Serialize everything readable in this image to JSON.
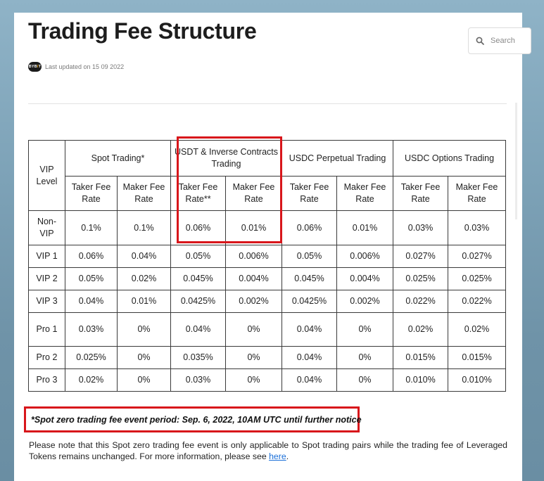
{
  "header": {
    "title": "Trading Fee Structure",
    "search_placeholder": "Search",
    "logo_text": "BYBIT",
    "last_updated": "Last updated on 15 09 2022"
  },
  "table": {
    "vip_header": "VIP Level",
    "groups": [
      "Spot Trading*",
      "USDT & Inverse Contracts Trading",
      "USDC Perpetual Trading",
      "USDC Options Trading"
    ],
    "subheaders": [
      "Taker Fee Rate",
      "Maker Fee Rate",
      "Taker Fee Rate**",
      "Maker Fee Rate",
      "Taker Fee Rate",
      "Maker Fee Rate",
      "Taker Fee Rate",
      "Maker Fee Rate"
    ],
    "rows": [
      {
        "level": "Non-VIP",
        "values": [
          "0.1%",
          "0.1%",
          "0.06%",
          "0.01%",
          "0.06%",
          "0.01%",
          "0.03%",
          "0.03%"
        ]
      },
      {
        "level": "VIP 1",
        "values": [
          "0.06%",
          "0.04%",
          "0.05%",
          "0.006%",
          "0.05%",
          "0.006%",
          "0.027%",
          "0.027%"
        ]
      },
      {
        "level": "VIP 2",
        "values": [
          "0.05%",
          "0.02%",
          "0.045%",
          "0.004%",
          "0.045%",
          "0.004%",
          "0.025%",
          "0.025%"
        ]
      },
      {
        "level": "VIP 3",
        "values": [
          "0.04%",
          "0.01%",
          "0.0425%",
          "0.002%",
          "0.0425%",
          "0.002%",
          "0.022%",
          "0.022%"
        ]
      },
      {
        "level": "Pro 1",
        "values": [
          "0.03%",
          "0%",
          "0.04%",
          "0%",
          "0.04%",
          "0%",
          "0.02%",
          "0.02%"
        ]
      },
      {
        "level": "Pro 2",
        "values": [
          "0.025%",
          "0%",
          "0.035%",
          "0%",
          "0.04%",
          "0%",
          "0.015%",
          "0.015%"
        ]
      },
      {
        "level": "Pro 3",
        "values": [
          "0.02%",
          "0%",
          "0.03%",
          "0%",
          "0.04%",
          "0%",
          "0.010%",
          "0.010%"
        ]
      }
    ]
  },
  "notice": "*Spot zero trading fee event period: Sep. 6, 2022, 10AM UTC until further notice",
  "note": {
    "text": "Please note that this Spot zero trading fee event is only applicable to Spot trading pairs while the trading fee of Leveraged Tokens remains unchanged. For more information, please see ",
    "link": "here",
    "end": "."
  },
  "colors": {
    "highlight": "#d8161b",
    "link": "#1a6fd8"
  }
}
